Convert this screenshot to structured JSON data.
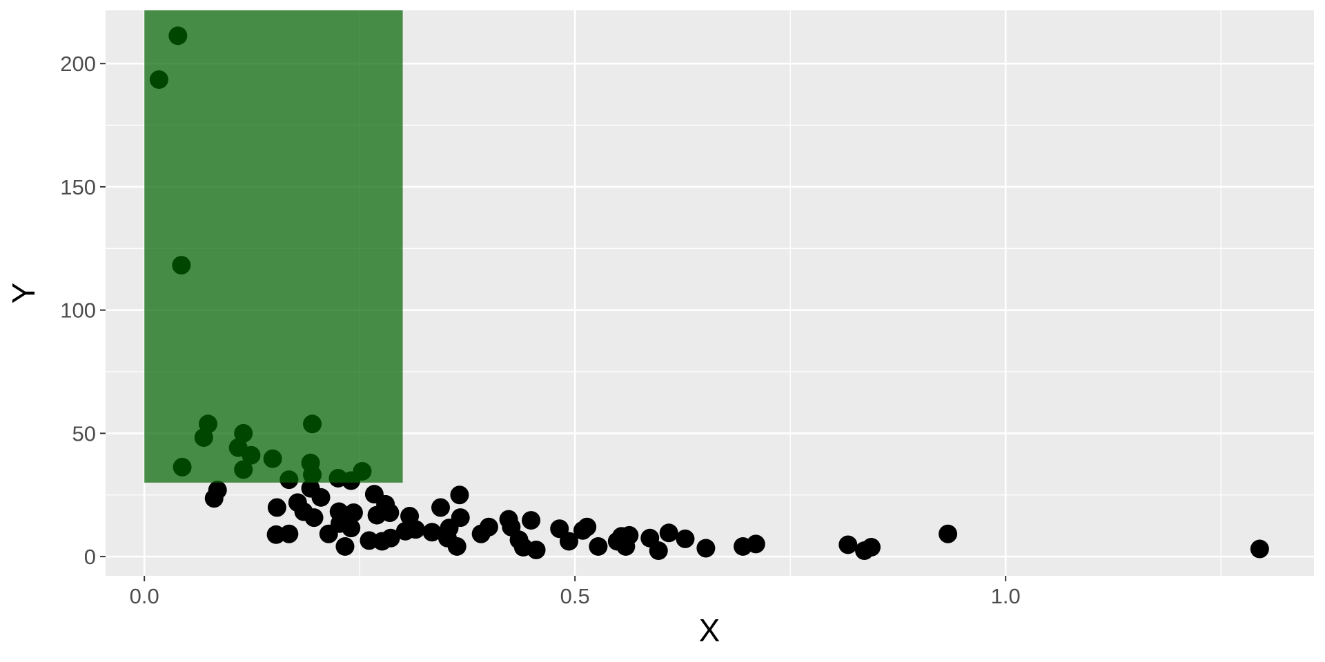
{
  "chart_data": {
    "type": "scatter",
    "title": "",
    "xlabel": "X",
    "ylabel": "Y",
    "xlim": [
      -0.045,
      1.358
    ],
    "ylim": [
      -7.8,
      221.6
    ],
    "x_ticks": [
      0.0,
      0.5,
      1.0
    ],
    "x_tick_labels": [
      "0.0",
      "0.5",
      "1.0"
    ],
    "y_ticks": [
      0,
      50,
      100,
      150,
      200
    ],
    "y_tick_labels": [
      "0",
      "50",
      "100",
      "150",
      "200"
    ],
    "grid": true,
    "background": "#EBEBEB",
    "point_color": "#000000",
    "highlight_rect": {
      "xmin": 0.0,
      "xmax": 0.3,
      "ymin": 30,
      "ymax": "Inf",
      "color": "#006400",
      "alpha": 0.7
    },
    "points": [
      [
        0.039,
        211.3
      ],
      [
        0.017,
        193.5
      ],
      [
        0.043,
        118.2
      ],
      [
        0.074,
        53.8
      ],
      [
        0.069,
        48.3
      ],
      [
        0.115,
        50.0
      ],
      [
        0.109,
        44.2
      ],
      [
        0.124,
        41.1
      ],
      [
        0.044,
        36.3
      ],
      [
        0.115,
        35.3
      ],
      [
        0.149,
        39.7
      ],
      [
        0.195,
        53.8
      ],
      [
        0.193,
        38.0
      ],
      [
        0.195,
        33.2
      ],
      [
        0.168,
        31.2
      ],
      [
        0.225,
        31.8
      ],
      [
        0.24,
        30.8
      ],
      [
        0.253,
        34.6
      ],
      [
        0.085,
        27.0
      ],
      [
        0.081,
        23.6
      ],
      [
        0.193,
        27.7
      ],
      [
        0.205,
        24.0
      ],
      [
        0.178,
        21.9
      ],
      [
        0.154,
        19.9
      ],
      [
        0.185,
        18.2
      ],
      [
        0.197,
        15.8
      ],
      [
        0.226,
        18.2
      ],
      [
        0.243,
        17.8
      ],
      [
        0.267,
        25.3
      ],
      [
        0.28,
        21.2
      ],
      [
        0.285,
        17.8
      ],
      [
        0.27,
        16.8
      ],
      [
        0.308,
        16.4
      ],
      [
        0.344,
        19.9
      ],
      [
        0.366,
        25.0
      ],
      [
        0.367,
        15.8
      ],
      [
        0.227,
        13.4
      ],
      [
        0.24,
        11.6
      ],
      [
        0.214,
        9.2
      ],
      [
        0.153,
        8.9
      ],
      [
        0.168,
        9.2
      ],
      [
        0.233,
        4.1
      ],
      [
        0.261,
        6.5
      ],
      [
        0.276,
        6.2
      ],
      [
        0.286,
        7.5
      ],
      [
        0.303,
        10.3
      ],
      [
        0.315,
        11.0
      ],
      [
        0.334,
        9.9
      ],
      [
        0.352,
        7.5
      ],
      [
        0.363,
        4.1
      ],
      [
        0.354,
        11.6
      ],
      [
        0.391,
        9.2
      ],
      [
        0.4,
        12.0
      ],
      [
        0.423,
        15.1
      ],
      [
        0.426,
        12.0
      ],
      [
        0.435,
        6.8
      ],
      [
        0.44,
        3.8
      ],
      [
        0.449,
        14.7
      ],
      [
        0.455,
        2.7
      ],
      [
        0.482,
        11.3
      ],
      [
        0.493,
        6.2
      ],
      [
        0.514,
        12.0
      ],
      [
        0.509,
        10.6
      ],
      [
        0.527,
        4.1
      ],
      [
        0.549,
        6.2
      ],
      [
        0.554,
        8.2
      ],
      [
        0.563,
        8.6
      ],
      [
        0.559,
        4.1
      ],
      [
        0.587,
        7.5
      ],
      [
        0.597,
        2.4
      ],
      [
        0.609,
        9.6
      ],
      [
        0.628,
        7.2
      ],
      [
        0.652,
        3.4
      ],
      [
        0.695,
        4.1
      ],
      [
        0.71,
        5.1
      ],
      [
        0.817,
        4.8
      ],
      [
        0.836,
        2.4
      ],
      [
        0.844,
        3.8
      ],
      [
        0.933,
        9.2
      ],
      [
        1.295,
        3.1
      ]
    ]
  }
}
